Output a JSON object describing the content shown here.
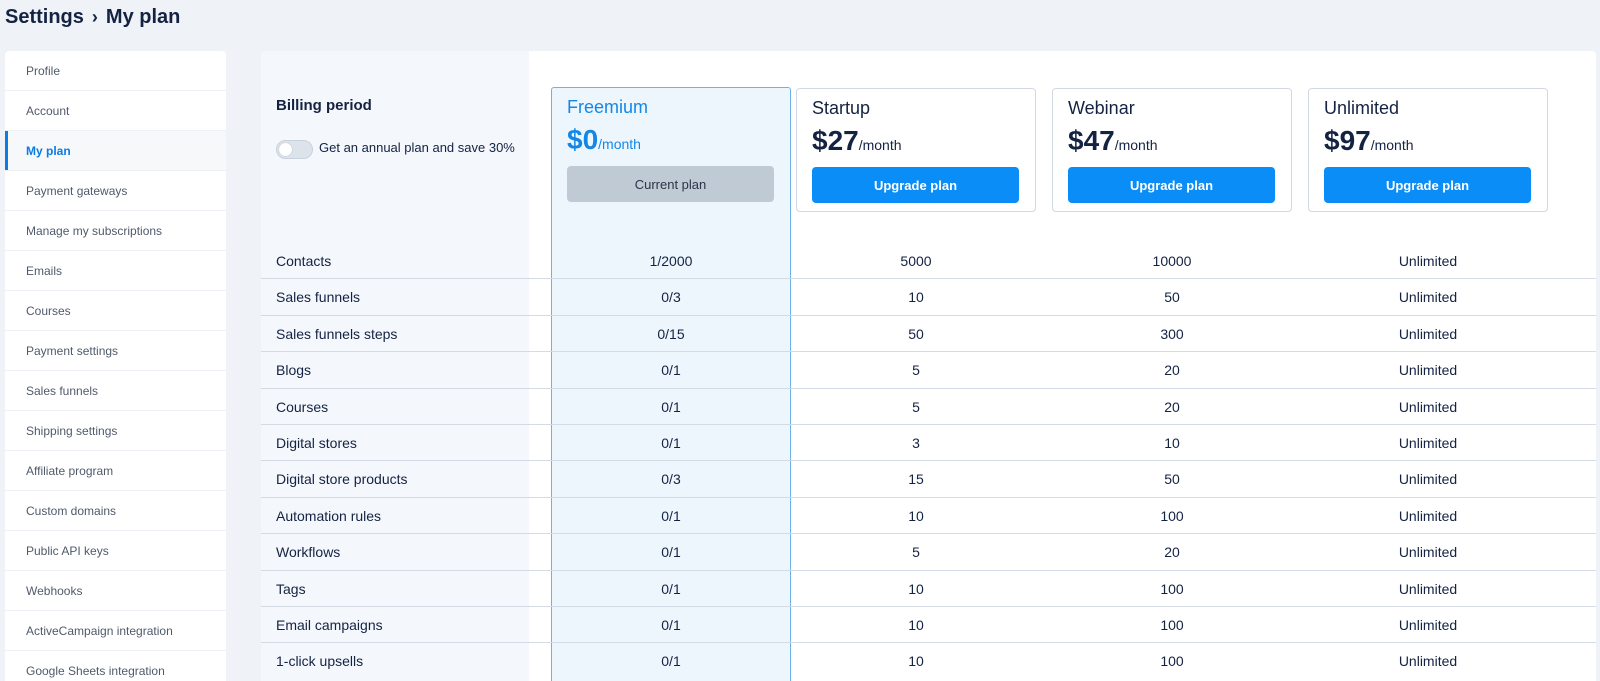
{
  "breadcrumb": {
    "root": "Settings",
    "separator": "›",
    "current": "My plan"
  },
  "sidebar": {
    "items": [
      {
        "label": "Profile"
      },
      {
        "label": "Account"
      },
      {
        "label": "My plan",
        "active": true
      },
      {
        "label": "Payment gateways"
      },
      {
        "label": "Manage my subscriptions"
      },
      {
        "label": "Emails"
      },
      {
        "label": "Courses"
      },
      {
        "label": "Payment settings"
      },
      {
        "label": "Sales funnels"
      },
      {
        "label": "Shipping settings"
      },
      {
        "label": "Affiliate program"
      },
      {
        "label": "Custom domains"
      },
      {
        "label": "Public API keys"
      },
      {
        "label": "Webhooks"
      },
      {
        "label": "ActiveCampaign integration"
      },
      {
        "label": "Google Sheets integration"
      }
    ]
  },
  "billing": {
    "title": "Billing period",
    "annual_toggle_text": "Get an annual plan and save 30%",
    "annual_toggle_on": false
  },
  "plans": [
    {
      "name": "Freemium",
      "price": "$0",
      "period": "/month",
      "button": "Current plan",
      "current": true
    },
    {
      "name": "Startup",
      "price": "$27",
      "period": "/month",
      "button": "Upgrade plan",
      "current": false
    },
    {
      "name": "Webinar",
      "price": "$47",
      "period": "/month",
      "button": "Upgrade plan",
      "current": false
    },
    {
      "name": "Unlimited",
      "price": "$97",
      "period": "/month",
      "button": "Upgrade plan",
      "current": false
    }
  ],
  "features": [
    {
      "label": "Contacts",
      "values": [
        "1/2000",
        "5000",
        "10000",
        "Unlimited"
      ]
    },
    {
      "label": "Sales funnels",
      "values": [
        "0/3",
        "10",
        "50",
        "Unlimited"
      ]
    },
    {
      "label": "Sales funnels steps",
      "values": [
        "0/15",
        "50",
        "300",
        "Unlimited"
      ]
    },
    {
      "label": "Blogs",
      "values": [
        "0/1",
        "5",
        "20",
        "Unlimited"
      ]
    },
    {
      "label": "Courses",
      "values": [
        "0/1",
        "5",
        "20",
        "Unlimited"
      ]
    },
    {
      "label": "Digital stores",
      "values": [
        "0/1",
        "3",
        "10",
        "Unlimited"
      ]
    },
    {
      "label": "Digital store products",
      "values": [
        "0/3",
        "15",
        "50",
        "Unlimited"
      ]
    },
    {
      "label": "Automation rules",
      "values": [
        "0/1",
        "10",
        "100",
        "Unlimited"
      ]
    },
    {
      "label": "Workflows",
      "values": [
        "0/1",
        "5",
        "20",
        "Unlimited"
      ]
    },
    {
      "label": "Tags",
      "values": [
        "0/1",
        "10",
        "100",
        "Unlimited"
      ]
    },
    {
      "label": "Email campaigns",
      "values": [
        "0/1",
        "10",
        "100",
        "Unlimited"
      ]
    },
    {
      "label": "1-click upsells",
      "values": [
        "0/1",
        "10",
        "100",
        "Unlimited"
      ]
    }
  ],
  "colors": {
    "accent": "#0a8df7",
    "freemium_highlight": "#1387e6",
    "page_bg": "#eff2f7"
  }
}
